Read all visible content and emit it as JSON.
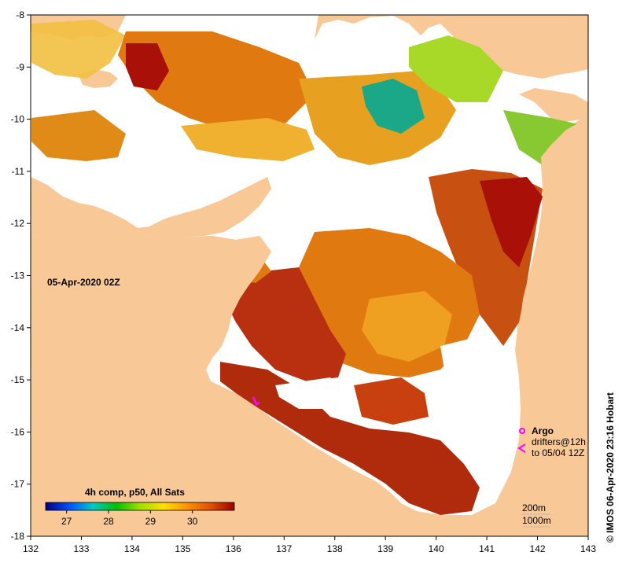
{
  "map": {
    "lon_range": [
      132,
      143
    ],
    "lat_range": [
      -18,
      -8
    ],
    "x_ticks": [
      132,
      133,
      134,
      135,
      136,
      137,
      138,
      139,
      140,
      141,
      142,
      143
    ],
    "y_ticks": [
      -8,
      -9,
      -10,
      -11,
      -12,
      -13,
      -14,
      -15,
      -16,
      -17,
      -18
    ],
    "timestamp_label": "05-Apr-2020 02Z",
    "land_color": "#f8c896",
    "nodata_color": "#ffffff"
  },
  "colorbar": {
    "title": "4h comp, p50, All Sats",
    "ticks": [
      27,
      28,
      29,
      30
    ],
    "range": [
      26.5,
      31
    ],
    "colors": [
      "#00007f",
      "#0050ff",
      "#00c8c8",
      "#00c000",
      "#a0e000",
      "#ffe000",
      "#ff9000",
      "#e05000",
      "#a00000"
    ]
  },
  "legend": {
    "argo_label": "Argo",
    "drifters_label": "drifters@12h",
    "drifters_date": "to 05/04 12Z",
    "argo_color": "#ff00ff",
    "drifter_color": "#ff00ff",
    "depth_200": "200m",
    "depth_1000": "1000m"
  },
  "credit": "© IMOS 06-Apr-2020 23:16 Hobart"
}
